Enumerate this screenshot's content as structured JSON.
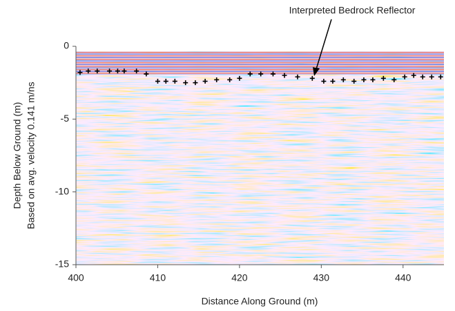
{
  "chart_data": {
    "type": "scatter",
    "annotation": "Interpreted Bedrock Reflector",
    "xlabel": "Distance Along Ground (m)",
    "ylabel": [
      "Depth Below Ground (m)",
      "Based on avg. velocity 0.141 m/ns"
    ],
    "xlim": [
      400,
      445
    ],
    "xticks": [
      400,
      410,
      420,
      430,
      440
    ],
    "ylim": [
      -15,
      0
    ],
    "yticks": [
      0,
      -5,
      -10,
      -15
    ],
    "series": [
      {
        "name": "Interpreted Bedrock Reflector",
        "color": "#000000",
        "x": [
          400.5,
          401.5,
          402.6,
          404.1,
          405.1,
          405.9,
          407.4,
          408.6,
          410.0,
          411.0,
          412.1,
          413.4,
          414.6,
          415.8,
          417.2,
          418.8,
          420.0,
          421.3,
          422.6,
          424.1,
          425.5,
          427.1,
          428.9,
          430.3,
          431.4,
          432.7,
          434.0,
          435.2,
          436.3,
          437.6,
          438.9,
          440.2,
          441.3,
          442.4,
          443.5,
          444.6
        ],
        "values": [
          -1.8,
          -1.7,
          -1.7,
          -1.7,
          -1.7,
          -1.7,
          -1.7,
          -1.9,
          -2.4,
          -2.4,
          -2.4,
          -2.5,
          -2.5,
          -2.4,
          -2.3,
          -2.3,
          -2.2,
          -1.9,
          -1.9,
          -1.9,
          -2.0,
          -2.1,
          -2.2,
          -2.4,
          -2.4,
          -2.3,
          -2.4,
          -2.3,
          -2.3,
          -2.2,
          -2.3,
          -2.1,
          -2.0,
          -2.1,
          -2.1,
          -2.1
        ]
      }
    ]
  }
}
